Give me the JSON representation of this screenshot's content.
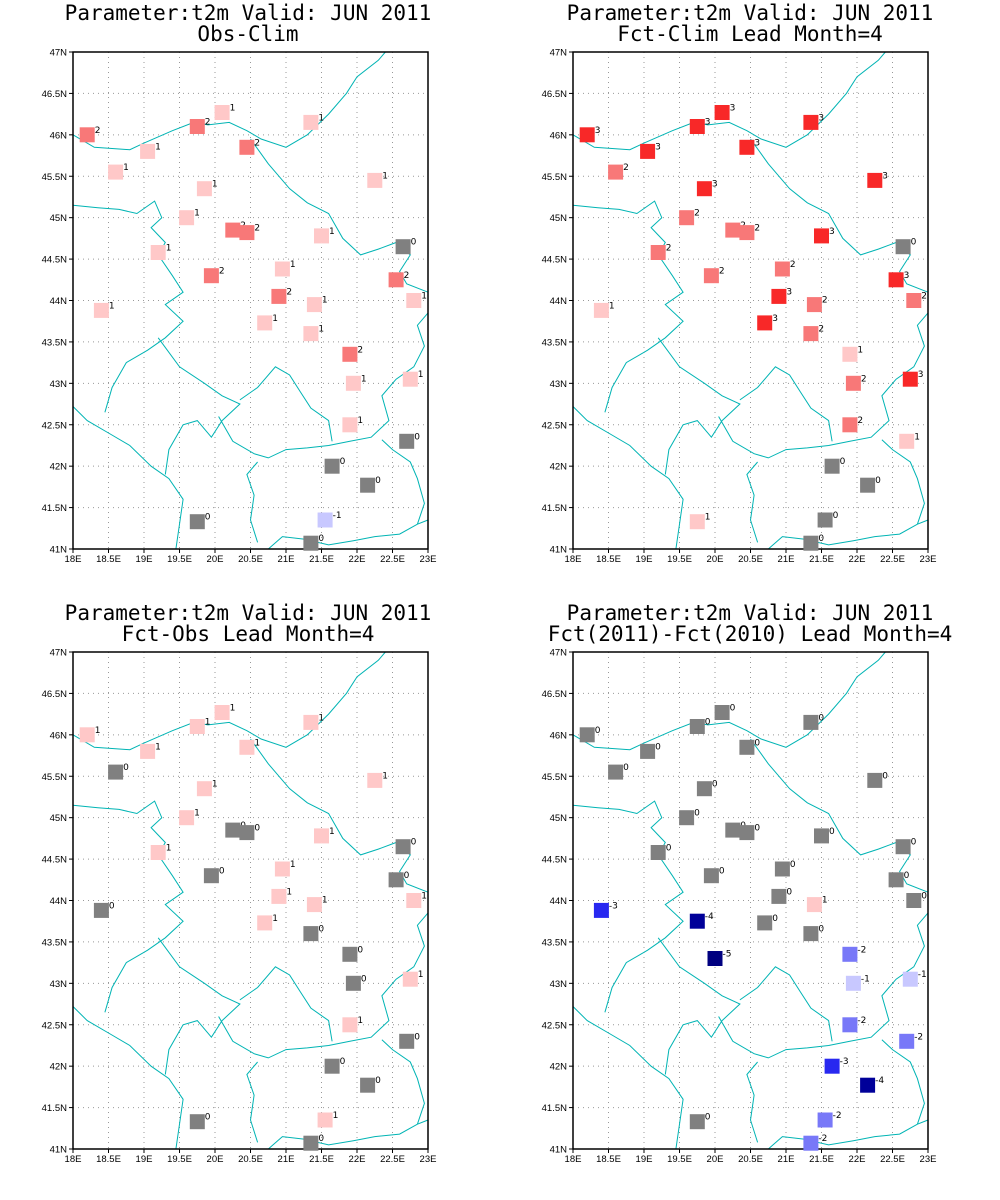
{
  "colors": {
    "map_lines": "#00b4b4",
    "grid": "#999999",
    "frame": "#000000",
    "value_colors": {
      "-5": "#000080",
      "-4": "#000099",
      "-3": "#2828f0",
      "-2": "#7878f8",
      "-1": "#c8c8ff",
      "0": "#808080",
      "1": "#ffc8c8",
      "2": "#f87878",
      "3": "#f82828"
    }
  },
  "chart_data": [
    {
      "type": "scatter",
      "title": "Parameter:t2m Valid: JUN 2011",
      "subtitle": "Obs-Clim",
      "xlabel": "",
      "ylabel": "",
      "xlim": [
        18,
        23
      ],
      "ylim": [
        41,
        47
      ],
      "x_ticks": [
        "18E",
        "18.5E",
        "19E",
        "19.5E",
        "20E",
        "20.5E",
        "21E",
        "21.5E",
        "22E",
        "22.5E",
        "23E"
      ],
      "y_ticks": [
        "41N",
        "41.5N",
        "42N",
        "42.5N",
        "43N",
        "43.5N",
        "44N",
        "44.5N",
        "45N",
        "45.5N",
        "46N",
        "46.5N",
        "47N"
      ],
      "grid": true,
      "points": [
        {
          "lon": 18.2,
          "lat": 46.0,
          "value": 2
        },
        {
          "lon": 18.6,
          "lat": 45.55,
          "value": 1
        },
        {
          "lon": 19.05,
          "lat": 45.8,
          "value": 1
        },
        {
          "lon": 19.75,
          "lat": 46.1,
          "value": 2
        },
        {
          "lon": 20.1,
          "lat": 46.27,
          "value": 1
        },
        {
          "lon": 20.45,
          "lat": 45.85,
          "value": 2
        },
        {
          "lon": 21.35,
          "lat": 46.15,
          "value": 1
        },
        {
          "lon": 19.85,
          "lat": 45.35,
          "value": 1
        },
        {
          "lon": 19.6,
          "lat": 45.0,
          "value": 1
        },
        {
          "lon": 20.25,
          "lat": 44.85,
          "value": 2
        },
        {
          "lon": 20.45,
          "lat": 44.82,
          "value": 2
        },
        {
          "lon": 21.5,
          "lat": 44.78,
          "value": 1
        },
        {
          "lon": 22.25,
          "lat": 45.45,
          "value": 1
        },
        {
          "lon": 19.2,
          "lat": 44.58,
          "value": 1
        },
        {
          "lon": 19.95,
          "lat": 44.3,
          "value": 2
        },
        {
          "lon": 20.95,
          "lat": 44.38,
          "value": 1
        },
        {
          "lon": 20.9,
          "lat": 44.05,
          "value": 2
        },
        {
          "lon": 21.4,
          "lat": 43.95,
          "value": 1
        },
        {
          "lon": 18.4,
          "lat": 43.88,
          "value": 1
        },
        {
          "lon": 20.7,
          "lat": 43.73,
          "value": 1
        },
        {
          "lon": 21.35,
          "lat": 43.6,
          "value": 1
        },
        {
          "lon": 21.9,
          "lat": 43.35,
          "value": 2
        },
        {
          "lon": 22.65,
          "lat": 44.65,
          "value": 0
        },
        {
          "lon": 22.55,
          "lat": 44.25,
          "value": 2
        },
        {
          "lon": 22.8,
          "lat": 44.0,
          "value": 1
        },
        {
          "lon": 21.95,
          "lat": 43.0,
          "value": 1
        },
        {
          "lon": 22.75,
          "lat": 43.05,
          "value": 1
        },
        {
          "lon": 21.9,
          "lat": 42.5,
          "value": 1
        },
        {
          "lon": 22.7,
          "lat": 42.3,
          "value": 0
        },
        {
          "lon": 21.65,
          "lat": 42.0,
          "value": 0
        },
        {
          "lon": 22.15,
          "lat": 41.77,
          "value": 0
        },
        {
          "lon": 19.75,
          "lat": 41.33,
          "value": 0
        },
        {
          "lon": 21.55,
          "lat": 41.35,
          "value": -1
        },
        {
          "lon": 21.35,
          "lat": 41.07,
          "value": 0
        }
      ]
    },
    {
      "type": "scatter",
      "title": "Parameter:t2m Valid: JUN 2011",
      "subtitle": "Fct-Clim Lead Month=4",
      "xlabel": "",
      "ylabel": "",
      "xlim": [
        18,
        23
      ],
      "ylim": [
        41,
        47
      ],
      "x_ticks": [
        "18E",
        "18.5E",
        "19E",
        "19.5E",
        "20E",
        "20.5E",
        "21E",
        "21.5E",
        "22E",
        "22.5E",
        "23E"
      ],
      "y_ticks": [
        "41N",
        "41.5N",
        "42N",
        "42.5N",
        "43N",
        "43.5N",
        "44N",
        "44.5N",
        "45N",
        "45.5N",
        "46N",
        "46.5N",
        "47N"
      ],
      "grid": true,
      "points": [
        {
          "lon": 18.2,
          "lat": 46.0,
          "value": 3
        },
        {
          "lon": 18.6,
          "lat": 45.55,
          "value": 2
        },
        {
          "lon": 19.05,
          "lat": 45.8,
          "value": 3
        },
        {
          "lon": 19.75,
          "lat": 46.1,
          "value": 3
        },
        {
          "lon": 20.1,
          "lat": 46.27,
          "value": 3
        },
        {
          "lon": 20.45,
          "lat": 45.85,
          "value": 3
        },
        {
          "lon": 21.35,
          "lat": 46.15,
          "value": 3
        },
        {
          "lon": 19.85,
          "lat": 45.35,
          "value": 3
        },
        {
          "lon": 19.6,
          "lat": 45.0,
          "value": 2
        },
        {
          "lon": 20.25,
          "lat": 44.85,
          "value": 2
        },
        {
          "lon": 20.45,
          "lat": 44.82,
          "value": 2
        },
        {
          "lon": 21.5,
          "lat": 44.78,
          "value": 3
        },
        {
          "lon": 22.25,
          "lat": 45.45,
          "value": 3
        },
        {
          "lon": 19.2,
          "lat": 44.58,
          "value": 2
        },
        {
          "lon": 19.95,
          "lat": 44.3,
          "value": 2
        },
        {
          "lon": 20.95,
          "lat": 44.38,
          "value": 2
        },
        {
          "lon": 20.9,
          "lat": 44.05,
          "value": 3
        },
        {
          "lon": 21.4,
          "lat": 43.95,
          "value": 2
        },
        {
          "lon": 18.4,
          "lat": 43.88,
          "value": 1
        },
        {
          "lon": 20.7,
          "lat": 43.73,
          "value": 3
        },
        {
          "lon": 21.35,
          "lat": 43.6,
          "value": 2
        },
        {
          "lon": 21.9,
          "lat": 43.35,
          "value": 1
        },
        {
          "lon": 22.65,
          "lat": 44.65,
          "value": 0
        },
        {
          "lon": 22.55,
          "lat": 44.25,
          "value": 3
        },
        {
          "lon": 22.8,
          "lat": 44.0,
          "value": 2
        },
        {
          "lon": 21.95,
          "lat": 43.0,
          "value": 2
        },
        {
          "lon": 22.75,
          "lat": 43.05,
          "value": 3
        },
        {
          "lon": 21.9,
          "lat": 42.5,
          "value": 2
        },
        {
          "lon": 22.7,
          "lat": 42.3,
          "value": 1
        },
        {
          "lon": 21.65,
          "lat": 42.0,
          "value": 0
        },
        {
          "lon": 22.15,
          "lat": 41.77,
          "value": 0
        },
        {
          "lon": 19.75,
          "lat": 41.33,
          "value": 1
        },
        {
          "lon": 21.55,
          "lat": 41.35,
          "value": 0
        },
        {
          "lon": 21.35,
          "lat": 41.07,
          "value": 0
        }
      ]
    },
    {
      "type": "scatter",
      "title": "Parameter:t2m Valid: JUN 2011",
      "subtitle": "Fct-Obs Lead Month=4",
      "xlabel": "",
      "ylabel": "",
      "xlim": [
        18,
        23
      ],
      "ylim": [
        41,
        47
      ],
      "x_ticks": [
        "18E",
        "18.5E",
        "19E",
        "19.5E",
        "20E",
        "20.5E",
        "21E",
        "21.5E",
        "22E",
        "22.5E",
        "23E"
      ],
      "y_ticks": [
        "41N",
        "41.5N",
        "42N",
        "42.5N",
        "43N",
        "43.5N",
        "44N",
        "44.5N",
        "45N",
        "45.5N",
        "46N",
        "46.5N",
        "47N"
      ],
      "grid": true,
      "points": [
        {
          "lon": 18.2,
          "lat": 46.0,
          "value": 1
        },
        {
          "lon": 18.6,
          "lat": 45.55,
          "value": 0
        },
        {
          "lon": 19.05,
          "lat": 45.8,
          "value": 1
        },
        {
          "lon": 19.75,
          "lat": 46.1,
          "value": 1
        },
        {
          "lon": 20.1,
          "lat": 46.27,
          "value": 1
        },
        {
          "lon": 20.45,
          "lat": 45.85,
          "value": 1
        },
        {
          "lon": 21.35,
          "lat": 46.15,
          "value": 1
        },
        {
          "lon": 19.85,
          "lat": 45.35,
          "value": 1
        },
        {
          "lon": 19.6,
          "lat": 45.0,
          "value": 1
        },
        {
          "lon": 20.25,
          "lat": 44.85,
          "value": 0
        },
        {
          "lon": 20.45,
          "lat": 44.82,
          "value": 0
        },
        {
          "lon": 21.5,
          "lat": 44.78,
          "value": 1
        },
        {
          "lon": 22.25,
          "lat": 45.45,
          "value": 1
        },
        {
          "lon": 19.2,
          "lat": 44.58,
          "value": 1
        },
        {
          "lon": 19.95,
          "lat": 44.3,
          "value": 0
        },
        {
          "lon": 20.95,
          "lat": 44.38,
          "value": 1
        },
        {
          "lon": 20.9,
          "lat": 44.05,
          "value": 1
        },
        {
          "lon": 21.4,
          "lat": 43.95,
          "value": 1
        },
        {
          "lon": 18.4,
          "lat": 43.88,
          "value": 0
        },
        {
          "lon": 20.7,
          "lat": 43.73,
          "value": 1
        },
        {
          "lon": 21.35,
          "lat": 43.6,
          "value": 0
        },
        {
          "lon": 21.9,
          "lat": 43.35,
          "value": 0
        },
        {
          "lon": 22.65,
          "lat": 44.65,
          "value": 0
        },
        {
          "lon": 22.55,
          "lat": 44.25,
          "value": 0
        },
        {
          "lon": 22.8,
          "lat": 44.0,
          "value": 1
        },
        {
          "lon": 21.95,
          "lat": 43.0,
          "value": 0
        },
        {
          "lon": 22.75,
          "lat": 43.05,
          "value": 1
        },
        {
          "lon": 21.9,
          "lat": 42.5,
          "value": 1
        },
        {
          "lon": 22.7,
          "lat": 42.3,
          "value": 0
        },
        {
          "lon": 21.65,
          "lat": 42.0,
          "value": 0
        },
        {
          "lon": 22.15,
          "lat": 41.77,
          "value": 0
        },
        {
          "lon": 19.75,
          "lat": 41.33,
          "value": 0
        },
        {
          "lon": 21.55,
          "lat": 41.35,
          "value": 1
        },
        {
          "lon": 21.35,
          "lat": 41.07,
          "value": 0
        }
      ]
    },
    {
      "type": "scatter",
      "title": "Parameter:t2m Valid: JUN 2011",
      "subtitle": "Fct(2011)-Fct(2010) Lead Month=4",
      "xlabel": "",
      "ylabel": "",
      "xlim": [
        18,
        23
      ],
      "ylim": [
        41,
        47
      ],
      "x_ticks": [
        "18E",
        "18.5E",
        "19E",
        "19.5E",
        "20E",
        "20.5E",
        "21E",
        "21.5E",
        "22E",
        "22.5E",
        "23E"
      ],
      "y_ticks": [
        "41N",
        "41.5N",
        "42N",
        "42.5N",
        "43N",
        "43.5N",
        "44N",
        "44.5N",
        "45N",
        "45.5N",
        "46N",
        "46.5N",
        "47N"
      ],
      "grid": true,
      "points": [
        {
          "lon": 18.2,
          "lat": 46.0,
          "value": 0
        },
        {
          "lon": 18.6,
          "lat": 45.55,
          "value": 0
        },
        {
          "lon": 19.05,
          "lat": 45.8,
          "value": 0
        },
        {
          "lon": 19.75,
          "lat": 46.1,
          "value": 0
        },
        {
          "lon": 20.1,
          "lat": 46.27,
          "value": 0
        },
        {
          "lon": 20.45,
          "lat": 45.85,
          "value": 0
        },
        {
          "lon": 21.35,
          "lat": 46.15,
          "value": 0
        },
        {
          "lon": 19.85,
          "lat": 45.35,
          "value": 0
        },
        {
          "lon": 19.6,
          "lat": 45.0,
          "value": 0
        },
        {
          "lon": 20.25,
          "lat": 44.85,
          "value": 0
        },
        {
          "lon": 20.45,
          "lat": 44.82,
          "value": 0
        },
        {
          "lon": 21.5,
          "lat": 44.78,
          "value": 0
        },
        {
          "lon": 22.25,
          "lat": 45.45,
          "value": 0
        },
        {
          "lon": 19.2,
          "lat": 44.58,
          "value": 0
        },
        {
          "lon": 19.95,
          "lat": 44.3,
          "value": 0
        },
        {
          "lon": 20.95,
          "lat": 44.38,
          "value": 0
        },
        {
          "lon": 20.9,
          "lat": 44.05,
          "value": 0
        },
        {
          "lon": 21.4,
          "lat": 43.95,
          "value": 1
        },
        {
          "lon": 18.4,
          "lat": 43.88,
          "value": -3
        },
        {
          "lon": 19.75,
          "lat": 43.75,
          "value": -4
        },
        {
          "lon": 20.7,
          "lat": 43.73,
          "value": 0
        },
        {
          "lon": 21.35,
          "lat": 43.6,
          "value": 0
        },
        {
          "lon": 20.0,
          "lat": 43.3,
          "value": -5
        },
        {
          "lon": 21.9,
          "lat": 43.35,
          "value": -2
        },
        {
          "lon": 22.65,
          "lat": 44.65,
          "value": 0
        },
        {
          "lon": 22.55,
          "lat": 44.25,
          "value": 0
        },
        {
          "lon": 22.8,
          "lat": 44.0,
          "value": 0
        },
        {
          "lon": 21.95,
          "lat": 43.0,
          "value": -1
        },
        {
          "lon": 22.75,
          "lat": 43.05,
          "value": -1
        },
        {
          "lon": 21.9,
          "lat": 42.5,
          "value": -2
        },
        {
          "lon": 22.7,
          "lat": 42.3,
          "value": -2
        },
        {
          "lon": 21.65,
          "lat": 42.0,
          "value": -3
        },
        {
          "lon": 22.15,
          "lat": 41.77,
          "value": -4
        },
        {
          "lon": 19.75,
          "lat": 41.33,
          "value": 0
        },
        {
          "lon": 21.55,
          "lat": 41.35,
          "value": -2
        },
        {
          "lon": 21.35,
          "lat": 41.07,
          "value": -2
        }
      ]
    }
  ]
}
